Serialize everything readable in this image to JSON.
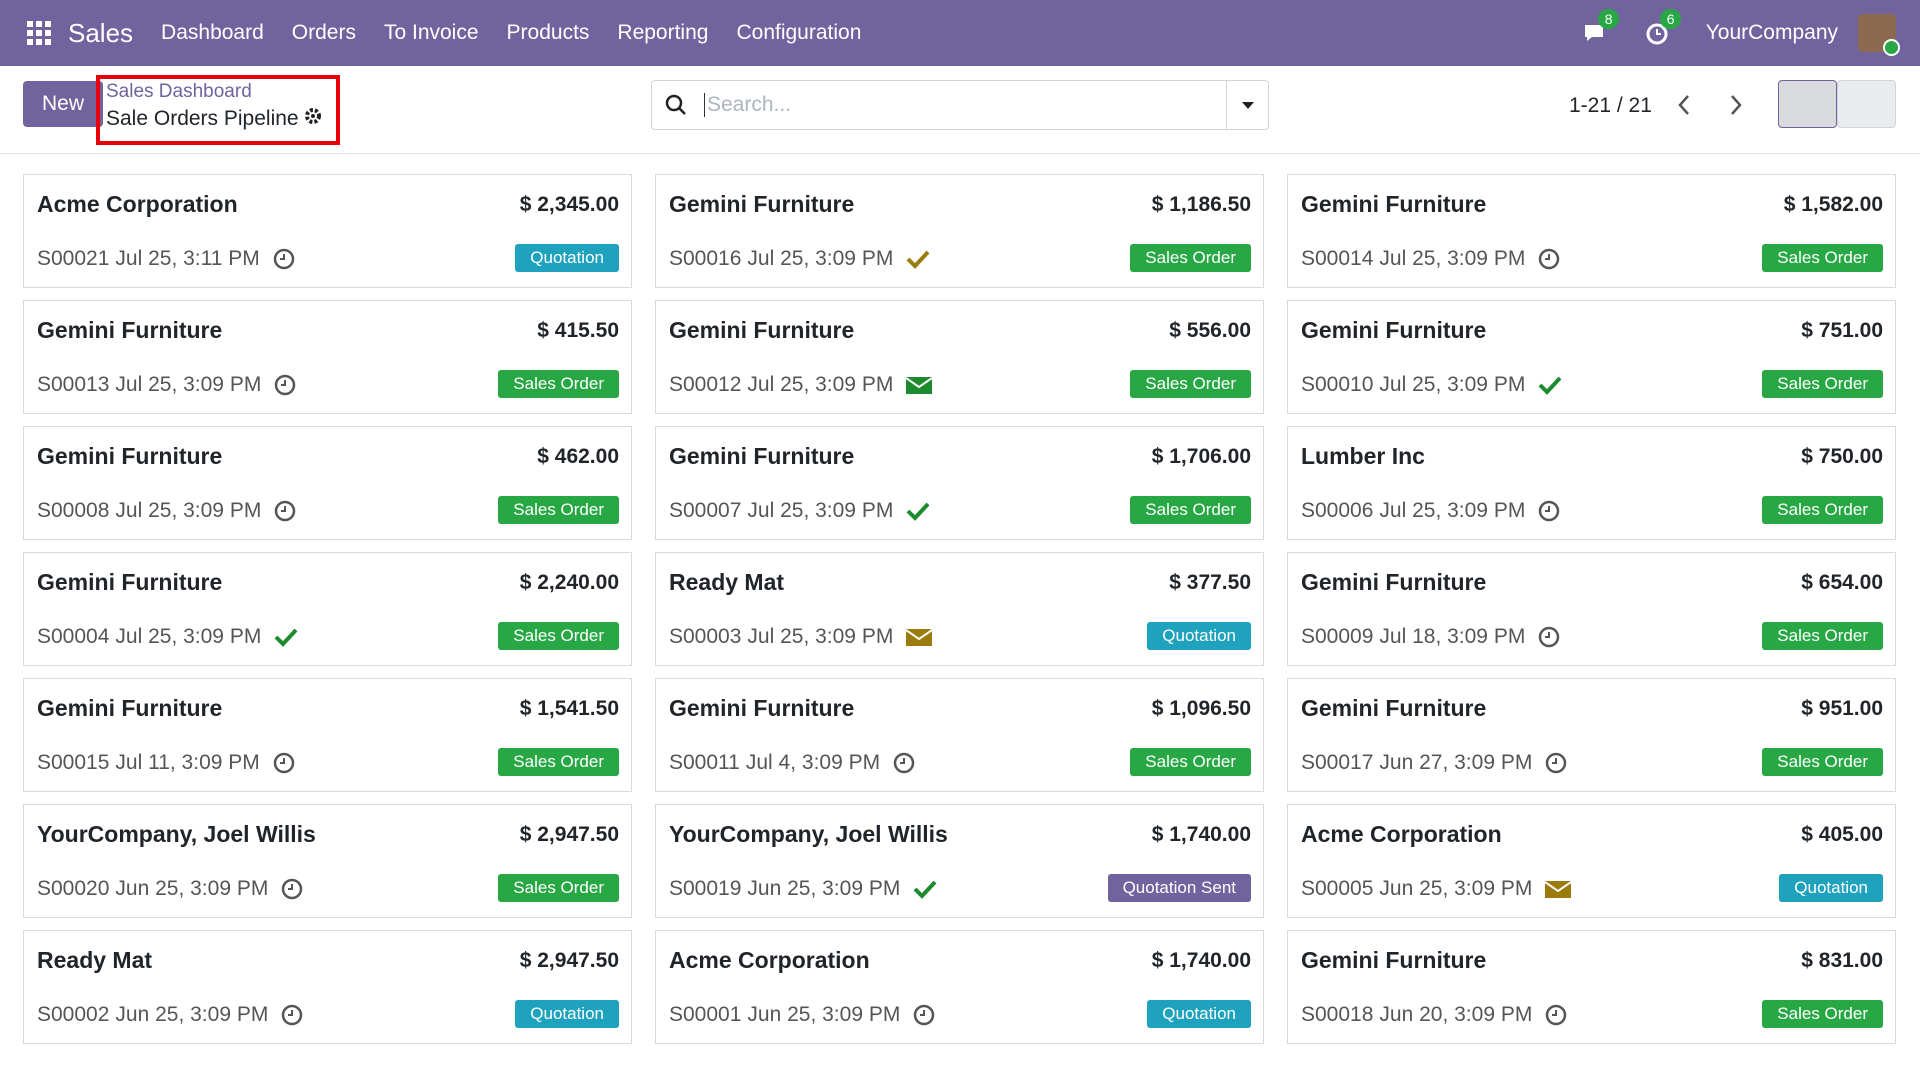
{
  "navbar": {
    "app": "Sales",
    "menu": [
      "Dashboard",
      "Orders",
      "To Invoice",
      "Products",
      "Reporting",
      "Configuration"
    ],
    "messages_count": "8",
    "activities_count": "6",
    "company": "YourCompany"
  },
  "control_panel": {
    "new_button": "New",
    "breadcrumb_parent": "Sales Dashboard",
    "breadcrumb_current": "Sale Orders Pipeline",
    "search_placeholder": "Search...",
    "pager": "1-21 / 21"
  },
  "cards": [
    {
      "customer": "Acme Corporation",
      "amount": "$ 2,345.00",
      "reference": "S00021",
      "date": "Jul 25, 3:11 PM",
      "status": "Quotation",
      "status_color": "#1ea2bd"
    },
    {
      "customer": "Gemini Furniture",
      "amount": "$ 1,186.50",
      "reference": "S00016",
      "date": "Jul 25, 3:09 PM",
      "status": "Sales Order",
      "status_color": "#28a745"
    },
    {
      "customer": "Gemini Furniture",
      "amount": "$ 1,582.00",
      "reference": "S00014",
      "date": "Jul 25, 3:09 PM",
      "status": "Sales Order",
      "status_color": "#28a745"
    },
    {
      "customer": "Gemini Furniture",
      "amount": "$ 415.50",
      "reference": "S00013",
      "date": "Jul 25, 3:09 PM",
      "status": "Sales Order",
      "status_color": "#28a745"
    },
    {
      "customer": "Gemini Furniture",
      "amount": "$ 556.00",
      "reference": "S00012",
      "date": "Jul 25, 3:09 PM",
      "status": "Sales Order",
      "status_color": "#28a745"
    },
    {
      "customer": "Gemini Furniture",
      "amount": "$ 751.00",
      "reference": "S00010",
      "date": "Jul 25, 3:09 PM",
      "status": "Sales Order",
      "status_color": "#28a745"
    },
    {
      "customer": "Gemini Furniture",
      "amount": "$ 462.00",
      "reference": "S00008",
      "date": "Jul 25, 3:09 PM",
      "status": "Sales Order",
      "status_color": "#28a745"
    },
    {
      "customer": "Gemini Furniture",
      "amount": "$ 1,706.00",
      "reference": "S00007",
      "date": "Jul 25, 3:09 PM",
      "status": "Sales Order",
      "status_color": "#28a745"
    },
    {
      "customer": "Lumber Inc",
      "amount": "$ 750.00",
      "reference": "S00006",
      "date": "Jul 25, 3:09 PM",
      "status": "Sales Order",
      "status_color": "#28a745"
    },
    {
      "customer": "Gemini Furniture",
      "amount": "$ 2,240.00",
      "reference": "S00004",
      "date": "Jul 25, 3:09 PM",
      "status": "Sales Order",
      "status_color": "#28a745"
    },
    {
      "customer": "Ready Mat",
      "amount": "$ 377.50",
      "reference": "S00003",
      "date": "Jul 25, 3:09 PM",
      "status": "Quotation",
      "status_color": "#1ea2bd"
    },
    {
      "customer": "Gemini Furniture",
      "amount": "$ 654.00",
      "reference": "S00009",
      "date": "Jul 18, 3:09 PM",
      "status": "Sales Order",
      "status_color": "#28a745"
    },
    {
      "customer": "Gemini Furniture",
      "amount": "$ 1,541.50",
      "reference": "S00015",
      "date": "Jul 11, 3:09 PM",
      "status": "Sales Order",
      "status_color": "#28a745"
    },
    {
      "customer": "Gemini Furniture",
      "amount": "$ 1,096.50",
      "reference": "S00011",
      "date": "Jul 4, 3:09 PM",
      "status": "Sales Order",
      "status_color": "#28a745"
    },
    {
      "customer": "Gemini Furniture",
      "amount": "$ 951.00",
      "reference": "S00017",
      "date": "Jun 27, 3:09 PM",
      "status": "Sales Order",
      "status_color": "#28a745"
    },
    {
      "customer": "YourCompany, Joel Willis",
      "amount": "$ 2,947.50",
      "reference": "S00020",
      "date": "Jun 25, 3:09 PM",
      "status": "Sales Order",
      "status_color": "#28a745"
    },
    {
      "customer": "YourCompany, Joel Willis",
      "amount": "$ 1,740.00",
      "reference": "S00019",
      "date": "Jun 25, 3:09 PM",
      "status": "Quotation Sent",
      "status_color": "#71639e"
    },
    {
      "customer": "Acme Corporation",
      "amount": "$ 405.00",
      "reference": "S00005",
      "date": "Jun 25, 3:09 PM",
      "status": "Quotation",
      "status_color": "#1ea2bd"
    },
    {
      "customer": "Ready Mat",
      "amount": "$ 2,947.50",
      "reference": "S00002",
      "date": "Jun 25, 3:09 PM",
      "status": "Quotation",
      "status_color": "#1ea2bd"
    },
    {
      "customer": "Acme Corporation",
      "amount": "$ 1,740.00",
      "reference": "S00001",
      "date": "Jun 25, 3:09 PM",
      "status": "Quotation",
      "status_color": "#1ea2bd"
    },
    {
      "customer": "Gemini Furniture",
      "amount": "$ 831.00",
      "reference": "S00018",
      "date": "Jun 20, 3:09 PM",
      "status": "Sales Order",
      "status_color": "#28a745"
    }
  ]
}
